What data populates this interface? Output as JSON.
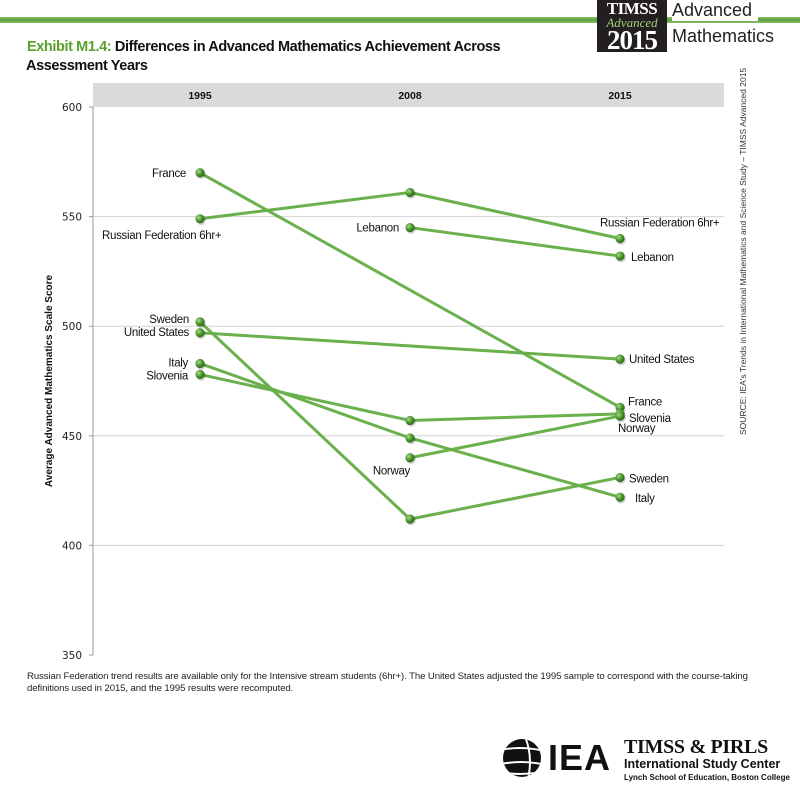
{
  "header": {
    "logo": {
      "line1": "TIMSS",
      "line2": "Advanced",
      "line3": "2015"
    },
    "product_line1": "Advanced",
    "product_line2": "Mathematics",
    "colors": {
      "accent_green": "#5aa02c",
      "logo_bg": "#231f20"
    }
  },
  "title": {
    "prefix": "Exhibit M1.4:",
    "line1": "Differences in Advanced Mathematics Achievement Across",
    "line2": "Assessment Years"
  },
  "chart_data": {
    "type": "line",
    "title": "Differences in Advanced Mathematics Achievement Across Assessment Years",
    "xlabel": "",
    "ylabel": "Average Advanced Mathematics Scale Score",
    "x": [
      "1995",
      "2008",
      "2015"
    ],
    "ylim": [
      350,
      600
    ],
    "yticks": [
      350,
      400,
      450,
      500,
      550,
      600
    ],
    "grid": true,
    "line_color": "#6ab04c",
    "marker_color": "#4a8f2a",
    "series": [
      {
        "name": "France",
        "values": [
          570,
          null,
          463
        ],
        "labels": {
          "0": "France",
          "2": "France"
        }
      },
      {
        "name": "Russian Federation 6hr+",
        "values": [
          549,
          561,
          540
        ],
        "labels": {
          "0": "Russian Federation 6hr+",
          "2": "Russian Federation 6hr+"
        }
      },
      {
        "name": "Sweden",
        "values": [
          502,
          412,
          431
        ],
        "labels": {
          "0": "Sweden",
          "2": "Sweden"
        }
      },
      {
        "name": "United States",
        "values": [
          497,
          null,
          485
        ],
        "labels": {
          "0": "United States",
          "2": "United States"
        }
      },
      {
        "name": "Italy",
        "values": [
          483,
          449,
          422
        ],
        "labels": {
          "0": "Italy",
          "2": "Italy"
        }
      },
      {
        "name": "Slovenia",
        "values": [
          478,
          457,
          460
        ],
        "labels": {
          "0": "Slovenia",
          "2": "Slovenia"
        }
      },
      {
        "name": "Lebanon",
        "values": [
          null,
          545,
          532
        ],
        "labels": {
          "1": "Lebanon",
          "2": "Lebanon"
        }
      },
      {
        "name": "Norway",
        "values": [
          null,
          440,
          459
        ],
        "labels": {
          "1": "Norway",
          "2": "Norway"
        }
      }
    ]
  },
  "source_note": "SOURCE: IEA's Trends in International Mathematics and Science Study – TIMSS Advanced 2015",
  "footnote": "Russian Federation trend results are available only for the Intensive stream students (6hr+). The United States adjusted the 1995 sample to correspond with the course-taking definitions used in 2015, and the 1995 results were recomputed.",
  "footer": {
    "iea": "IEA",
    "center_line1": "TIMSS & PIRLS",
    "center_line2": "International Study Center",
    "center_line3": "Lynch School of Education, Boston College"
  }
}
